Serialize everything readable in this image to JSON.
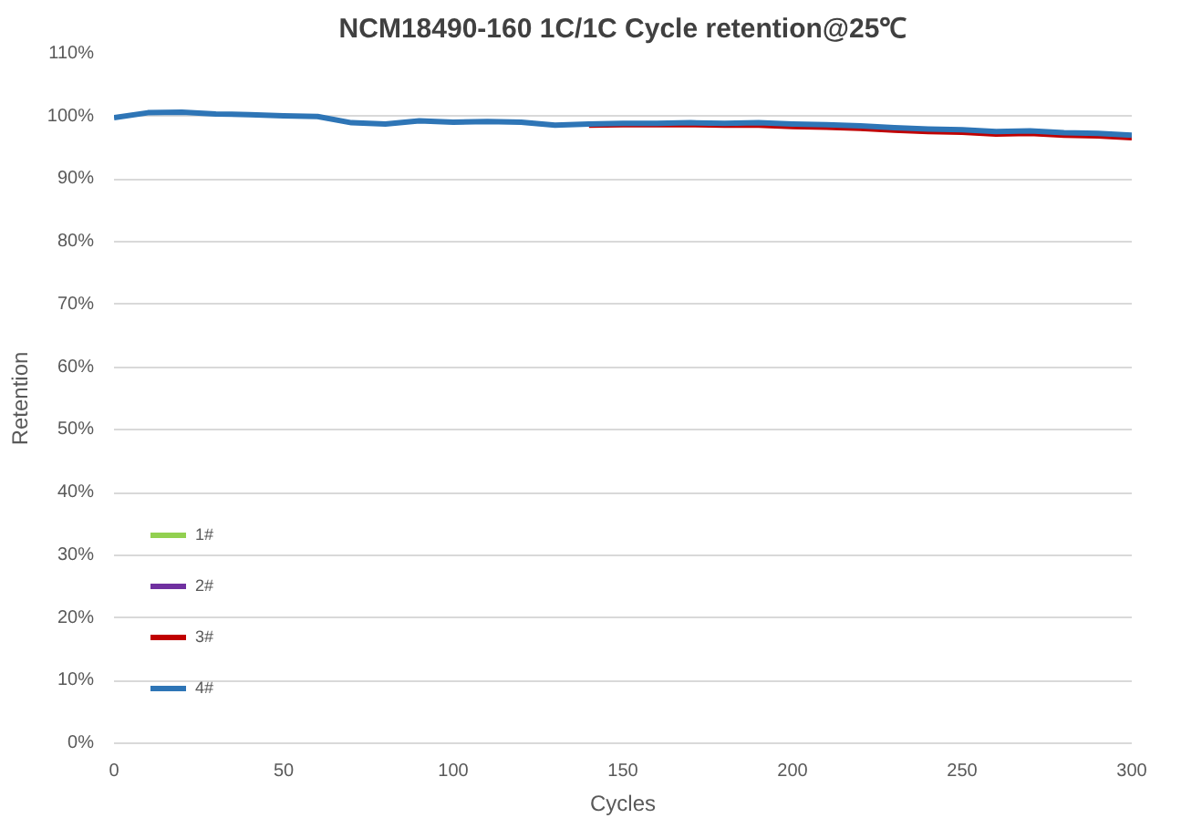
{
  "chart_data": {
    "type": "line",
    "title": "NCM18490-160 1C/1C Cycle retention@25℃",
    "xlabel": "Cycles",
    "ylabel": "Retention",
    "x": [
      0,
      10,
      20,
      30,
      40,
      50,
      60,
      70,
      80,
      90,
      100,
      110,
      120,
      130,
      140,
      150,
      160,
      170,
      180,
      190,
      200,
      210,
      220,
      230,
      240,
      250,
      260,
      270,
      280,
      290,
      300
    ],
    "series": [
      {
        "name": "1#",
        "color": "#92d050",
        "values": [
          null,
          null,
          null,
          null,
          null,
          null,
          null,
          null,
          null,
          null,
          null,
          null,
          null,
          null,
          null,
          null,
          null,
          null,
          null,
          null,
          null,
          null,
          null,
          null,
          null,
          null,
          null,
          null,
          null,
          null,
          null
        ]
      },
      {
        "name": "2#",
        "color": "#7030a0",
        "values": [
          null,
          null,
          null,
          null,
          null,
          null,
          null,
          null,
          null,
          null,
          null,
          null,
          null,
          null,
          null,
          null,
          null,
          null,
          null,
          null,
          null,
          null,
          null,
          null,
          null,
          null,
          null,
          null,
          null,
          null,
          null
        ]
      },
      {
        "name": "3#",
        "color": "#c00000",
        "values": [
          null,
          null,
          null,
          null,
          null,
          null,
          null,
          null,
          null,
          null,
          null,
          null,
          null,
          null,
          98.6,
          98.7,
          98.7,
          98.7,
          98.6,
          98.6,
          98.4,
          98.3,
          98.1,
          97.8,
          97.6,
          97.5,
          97.2,
          97.3,
          97.0,
          96.9,
          96.6
        ]
      },
      {
        "name": "4#",
        "color": "#2e75b6",
        "values": [
          99.8,
          100.6,
          100.7,
          100.4,
          100.3,
          100.1,
          100.0,
          99.0,
          98.8,
          99.3,
          99.1,
          99.2,
          99.1,
          98.6,
          98.8,
          98.9,
          98.9,
          99.0,
          98.9,
          99.0,
          98.8,
          98.7,
          98.5,
          98.2,
          98.0,
          97.9,
          97.6,
          97.7,
          97.4,
          97.3,
          97.0
        ]
      }
    ],
    "xlim": [
      0,
      300
    ],
    "xticks": [
      0,
      50,
      100,
      150,
      200,
      250,
      300
    ],
    "ylim": [
      0,
      110
    ],
    "yticks": [
      {
        "value": 0,
        "label": "0%"
      },
      {
        "value": 10,
        "label": "10%"
      },
      {
        "value": 20,
        "label": "20%"
      },
      {
        "value": 30,
        "label": "30%"
      },
      {
        "value": 40,
        "label": "40%"
      },
      {
        "value": 50,
        "label": "50%"
      },
      {
        "value": 60,
        "label": "60%"
      },
      {
        "value": 70,
        "label": "70%"
      },
      {
        "value": 80,
        "label": "80%"
      },
      {
        "value": 90,
        "label": "90%"
      },
      {
        "value": 100,
        "label": "100%"
      },
      {
        "value": 110,
        "label": "110%"
      }
    ],
    "grid": "y",
    "legend": "bottom left",
    "marker": "none",
    "line_style": "solid"
  }
}
